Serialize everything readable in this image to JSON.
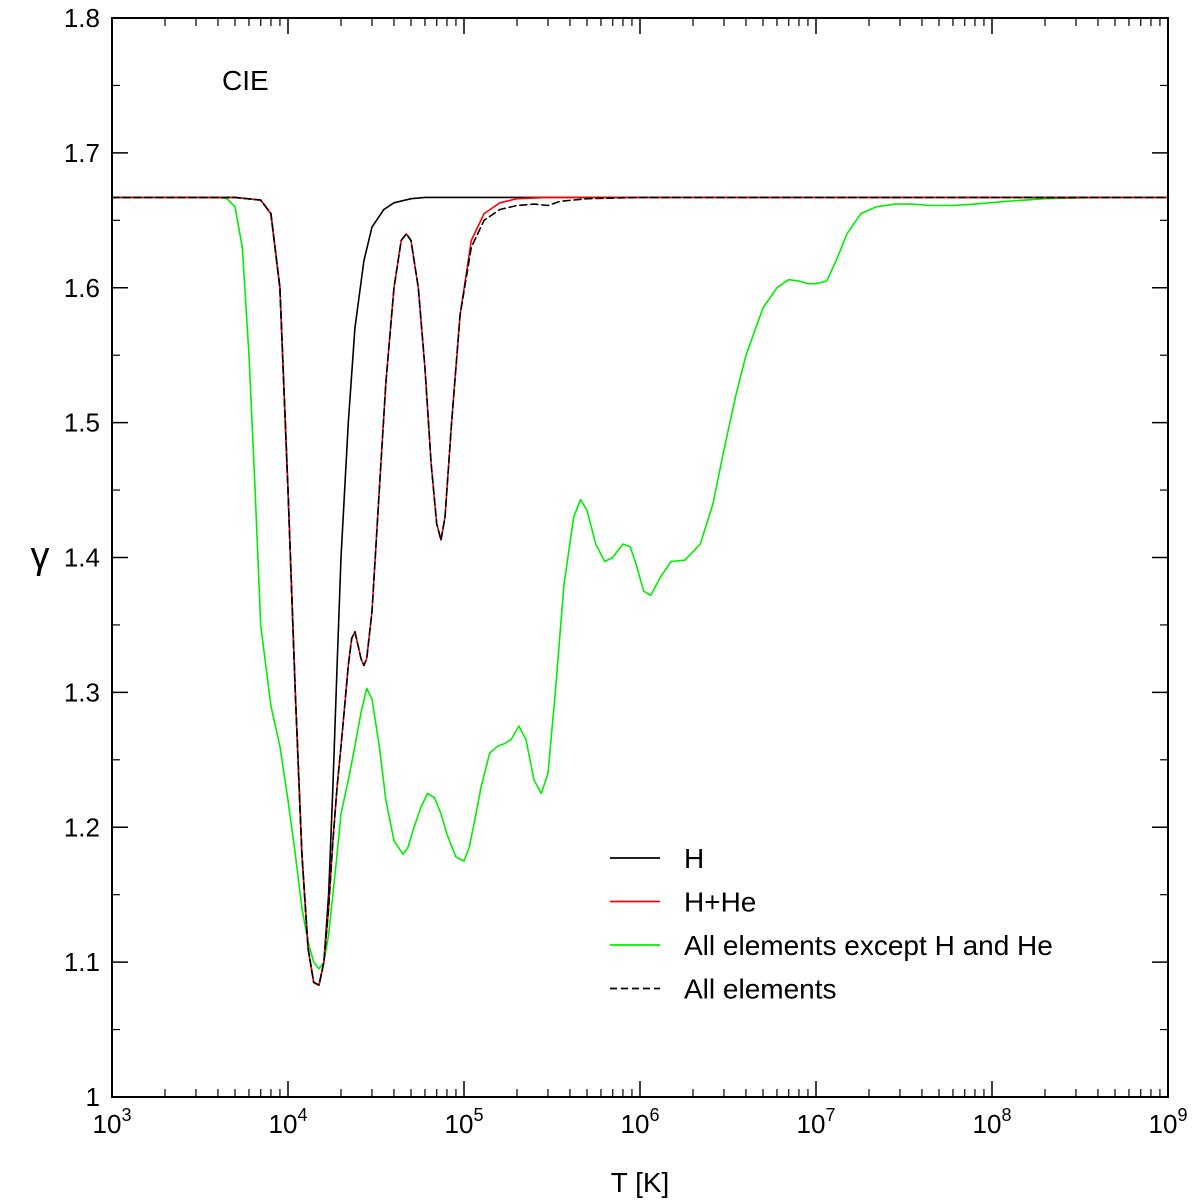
{
  "chart_data": {
    "type": "line",
    "annotation": "CIE",
    "xlabel": "T [K]",
    "ylabel": "γ",
    "xscale": "log",
    "xlim": [
      1000,
      1000000000
    ],
    "ylim": [
      1.0,
      1.8
    ],
    "x_ticks": [
      1000,
      10000,
      100000,
      1000000,
      10000000,
      100000000,
      1000000000
    ],
    "x_tick_labels": [
      {
        "base": "10",
        "exp": "3"
      },
      {
        "base": "10",
        "exp": "4"
      },
      {
        "base": "10",
        "exp": "5"
      },
      {
        "base": "10",
        "exp": "6"
      },
      {
        "base": "10",
        "exp": "7"
      },
      {
        "base": "10",
        "exp": "8"
      },
      {
        "base": "10",
        "exp": "9"
      }
    ],
    "y_ticks": [
      1.0,
      1.1,
      1.2,
      1.3,
      1.4,
      1.5,
      1.6,
      1.7,
      1.8
    ],
    "y_tick_labels": [
      "1",
      "1.1",
      "1.2",
      "1.3",
      "1.4",
      "1.5",
      "1.6",
      "1.7",
      "1.8"
    ],
    "grid": false,
    "legend_position": "bottom-right",
    "series": [
      {
        "name": "H",
        "color": "#000000",
        "dash": "solid",
        "x": [
          1000,
          5000,
          7000,
          8000,
          9000,
          10000,
          11000,
          12000,
          13000,
          14000,
          15000,
          16000,
          17000,
          18000,
          19000,
          20000,
          22000,
          24000,
          27000,
          30000,
          35000,
          40000,
          50000,
          60000,
          100000,
          1000000,
          1000000000
        ],
        "y": [
          1.667,
          1.667,
          1.665,
          1.655,
          1.6,
          1.45,
          1.3,
          1.18,
          1.11,
          1.085,
          1.083,
          1.1,
          1.15,
          1.23,
          1.32,
          1.4,
          1.5,
          1.57,
          1.62,
          1.645,
          1.658,
          1.663,
          1.666,
          1.667,
          1.667,
          1.667,
          1.667
        ]
      },
      {
        "name": "H+He",
        "color": "#ff0000",
        "dash": "solid",
        "x": [
          1000,
          5000,
          7000,
          8000,
          9000,
          10000,
          11000,
          12000,
          13000,
          14000,
          15000,
          16000,
          17000,
          18000,
          19000,
          20000,
          21000,
          22000,
          23000,
          24000,
          25000,
          26000,
          27000,
          28000,
          30000,
          33000,
          36000,
          40000,
          44000,
          47000,
          50000,
          55000,
          60000,
          65000,
          70000,
          74000,
          78000,
          85000,
          95000,
          110000,
          130000,
          160000,
          200000,
          300000,
          1000000,
          1000000000
        ],
        "y": [
          1.667,
          1.667,
          1.665,
          1.655,
          1.6,
          1.45,
          1.3,
          1.18,
          1.11,
          1.085,
          1.083,
          1.1,
          1.14,
          1.19,
          1.23,
          1.26,
          1.29,
          1.32,
          1.34,
          1.345,
          1.335,
          1.325,
          1.32,
          1.325,
          1.36,
          1.45,
          1.53,
          1.6,
          1.635,
          1.64,
          1.635,
          1.6,
          1.54,
          1.47,
          1.425,
          1.413,
          1.43,
          1.5,
          1.58,
          1.635,
          1.655,
          1.663,
          1.666,
          1.667,
          1.667,
          1.667
        ]
      },
      {
        "name": "All elements except H and He",
        "color": "#00ee00",
        "dash": "solid",
        "x": [
          1000,
          4000,
          4500,
          5000,
          5500,
          6000,
          6500,
          7000,
          8000,
          9000,
          10000,
          11000,
          12000,
          13000,
          14000,
          15000,
          16000,
          17000,
          18000,
          19000,
          20000,
          22000,
          24000,
          26000,
          28000,
          30000,
          33000,
          36000,
          40000,
          45000,
          48000,
          52000,
          57000,
          62000,
          68000,
          74000,
          80000,
          90000,
          100000,
          107000,
          115000,
          125000,
          140000,
          155000,
          170000,
          185000,
          205000,
          225000,
          250000,
          275000,
          300000,
          330000,
          370000,
          420000,
          460000,
          500000,
          560000,
          630000,
          700000,
          800000,
          880000,
          950000,
          1050000,
          1150000,
          1300000,
          1500000,
          1800000,
          2200000,
          2600000,
          3000000,
          3500000,
          4000000,
          5000000,
          6000000,
          7000000,
          8000000,
          9000000,
          10000000,
          11500000,
          13000000,
          15000000,
          18000000,
          22000000,
          28000000,
          35000000,
          45000000,
          60000000,
          80000000,
          120000000,
          200000000,
          400000000,
          1000000000
        ],
        "y": [
          1.667,
          1.667,
          1.666,
          1.66,
          1.63,
          1.55,
          1.45,
          1.35,
          1.29,
          1.26,
          1.22,
          1.18,
          1.14,
          1.115,
          1.1,
          1.095,
          1.1,
          1.12,
          1.15,
          1.18,
          1.21,
          1.235,
          1.26,
          1.285,
          1.303,
          1.295,
          1.26,
          1.22,
          1.19,
          1.18,
          1.185,
          1.2,
          1.215,
          1.225,
          1.222,
          1.21,
          1.195,
          1.178,
          1.175,
          1.185,
          1.205,
          1.23,
          1.255,
          1.26,
          1.262,
          1.265,
          1.275,
          1.265,
          1.235,
          1.225,
          1.24,
          1.3,
          1.38,
          1.43,
          1.443,
          1.435,
          1.41,
          1.397,
          1.4,
          1.41,
          1.408,
          1.395,
          1.375,
          1.372,
          1.385,
          1.397,
          1.398,
          1.41,
          1.44,
          1.48,
          1.52,
          1.55,
          1.585,
          1.6,
          1.606,
          1.605,
          1.603,
          1.603,
          1.605,
          1.62,
          1.64,
          1.655,
          1.66,
          1.662,
          1.662,
          1.661,
          1.661,
          1.662,
          1.664,
          1.666,
          1.667,
          1.667
        ]
      },
      {
        "name": "All elements",
        "color": "#000000",
        "dash": "dashed",
        "x": [
          1000,
          5000,
          7000,
          8000,
          9000,
          10000,
          11000,
          12000,
          13000,
          14000,
          15000,
          16000,
          17000,
          18000,
          19000,
          20000,
          21000,
          22000,
          23000,
          24000,
          25000,
          26000,
          27000,
          28000,
          30000,
          33000,
          36000,
          40000,
          44000,
          47000,
          50000,
          55000,
          60000,
          65000,
          70000,
          74000,
          78000,
          85000,
          95000,
          110000,
          130000,
          160000,
          200000,
          250000,
          300000,
          350000,
          500000,
          1000000,
          1000000000
        ],
        "y": [
          1.667,
          1.667,
          1.665,
          1.655,
          1.6,
          1.45,
          1.3,
          1.18,
          1.11,
          1.085,
          1.083,
          1.1,
          1.14,
          1.19,
          1.23,
          1.26,
          1.29,
          1.32,
          1.34,
          1.345,
          1.335,
          1.325,
          1.32,
          1.325,
          1.36,
          1.45,
          1.53,
          1.6,
          1.635,
          1.64,
          1.635,
          1.6,
          1.54,
          1.47,
          1.425,
          1.413,
          1.43,
          1.5,
          1.58,
          1.63,
          1.65,
          1.658,
          1.661,
          1.662,
          1.661,
          1.664,
          1.666,
          1.667,
          1.667
        ]
      }
    ]
  }
}
